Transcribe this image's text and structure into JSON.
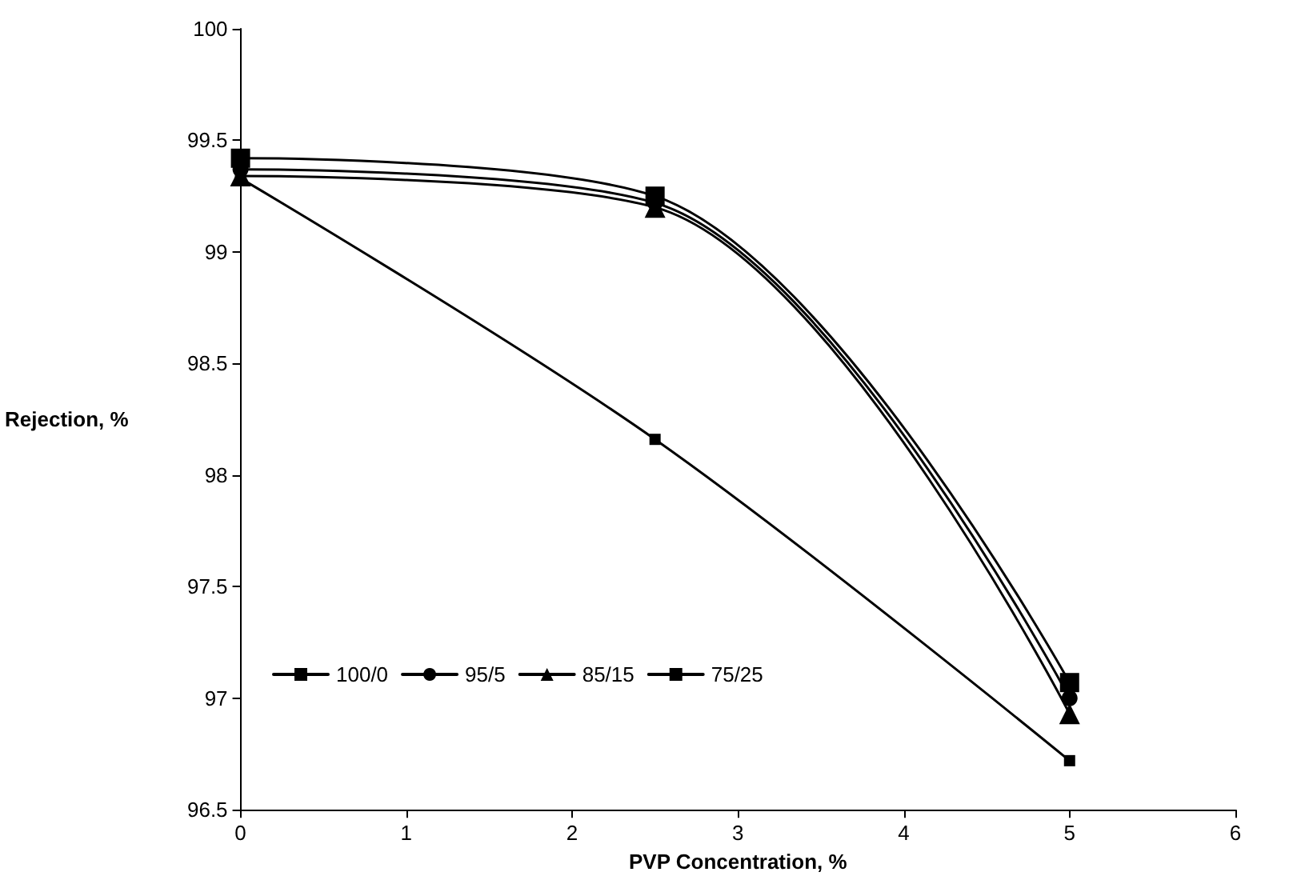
{
  "chart_data": {
    "type": "line",
    "xlabel": "PVP Concentration, %",
    "ylabel": "Rejection, %",
    "x": [
      0,
      2.5,
      5
    ],
    "series": [
      {
        "name": "100/0",
        "color": "#000000",
        "marker": "square",
        "values": [
          99.33,
          98.16,
          96.72
        ]
      },
      {
        "name": "95/5",
        "color": "#000000",
        "marker": "circle",
        "values": [
          99.37,
          99.22,
          97.0
        ]
      },
      {
        "name": "85/15",
        "color": "#000000",
        "marker": "triangle",
        "values": [
          99.34,
          99.2,
          96.93
        ]
      },
      {
        "name": "75/25",
        "color": "#000000",
        "marker": "square",
        "values": [
          99.42,
          99.25,
          97.07
        ]
      }
    ],
    "xlim": [
      0,
      6
    ],
    "xticks": [
      0,
      1,
      2,
      3,
      4,
      5,
      6
    ],
    "ylim": [
      96.5,
      100
    ],
    "yticks": [
      96.5,
      97,
      97.5,
      98,
      98.5,
      99,
      99.5,
      100
    ],
    "grid": false,
    "legend": "bottom left",
    "line_style": "solid"
  }
}
